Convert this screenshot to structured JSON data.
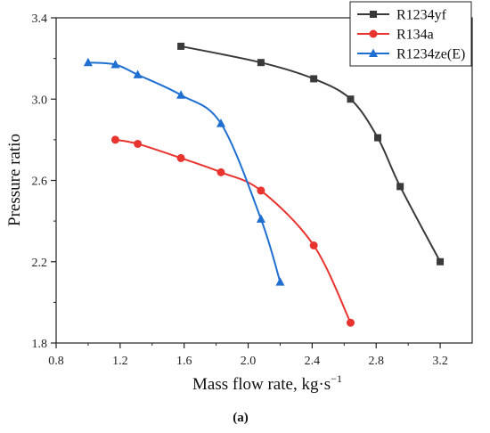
{
  "chart_data": {
    "type": "line",
    "caption": "(a)",
    "xlabel": "Mass flow rate, kg·s",
    "xlabel_sup": "−1",
    "ylabel": "Pressure ratio",
    "xlim": [
      0.8,
      3.4
    ],
    "ylim": [
      1.8,
      3.4
    ],
    "xticks": [
      "0.8",
      "1.2",
      "1.6",
      "2.0",
      "2.4",
      "2.8",
      "3.2"
    ],
    "yticks": [
      "1.8",
      "2.2",
      "2.6",
      "3.0",
      "3.4"
    ],
    "grid": false,
    "legend_position": "top-right",
    "series": [
      {
        "name": "R1234yf",
        "color": "#3a3a3a",
        "marker": "square",
        "x": [
          1.58,
          2.08,
          2.41,
          2.64,
          2.81,
          2.95,
          3.2
        ],
        "y": [
          3.26,
          3.18,
          3.1,
          3.0,
          2.81,
          2.57,
          2.2
        ]
      },
      {
        "name": "R134a",
        "color": "#e8332f",
        "marker": "circle",
        "x": [
          1.17,
          1.31,
          1.58,
          1.83,
          2.08,
          2.41,
          2.64
        ],
        "y": [
          2.8,
          2.78,
          2.71,
          2.64,
          2.55,
          2.28,
          1.9
        ]
      },
      {
        "name": "R1234ze(E)",
        "color": "#1f6fd1",
        "marker": "triangle",
        "x": [
          1.0,
          1.17,
          1.31,
          1.58,
          1.83,
          2.08,
          2.2
        ],
        "y": [
          3.18,
          3.17,
          3.12,
          3.02,
          2.88,
          2.41,
          2.1
        ]
      }
    ]
  }
}
